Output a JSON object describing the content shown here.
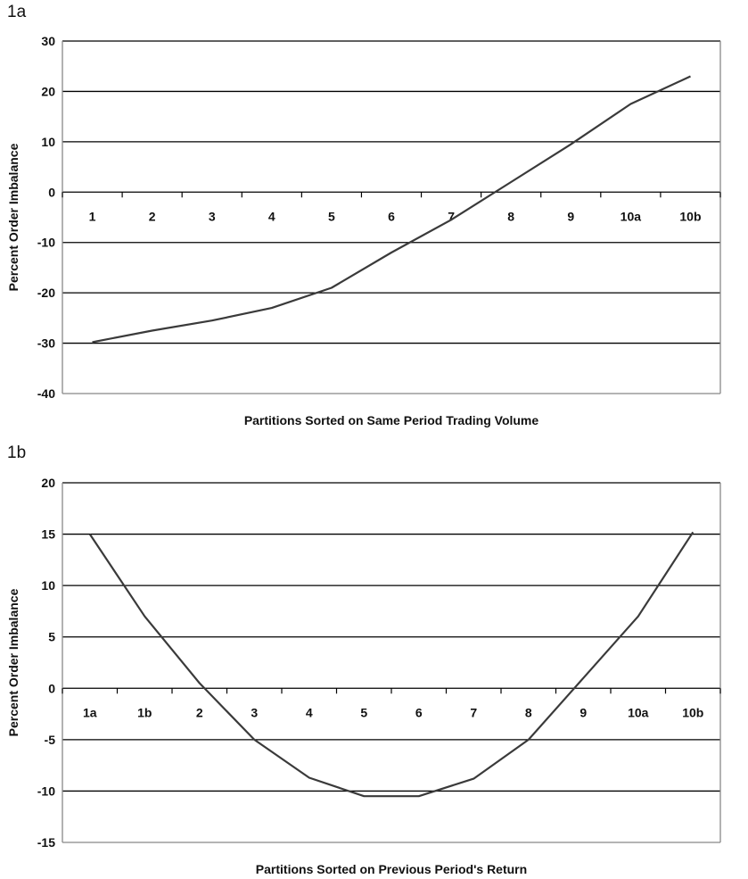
{
  "chart_data": [
    {
      "panel_label": "1a",
      "type": "line",
      "categories": [
        "1",
        "2",
        "3",
        "4",
        "5",
        "6",
        "7",
        "8",
        "9",
        "10a",
        "10b"
      ],
      "values": [
        -29.8,
        -27.5,
        -25.5,
        -23,
        -19,
        -12,
        -5.5,
        2,
        9.5,
        17.5,
        23
      ],
      "xlabel": "Partitions Sorted on Same Period Trading Volume",
      "ylabel": "Percent Order Imbalance",
      "ylim": [
        -40,
        30
      ],
      "yticks": [
        "30",
        "20",
        "10",
        "0",
        "-10",
        "-20",
        "-30",
        "-40"
      ],
      "grid": true,
      "legend": "none"
    },
    {
      "panel_label": "1b",
      "type": "line",
      "categories": [
        "1a",
        "1b",
        "2",
        "3",
        "4",
        "5",
        "6",
        "7",
        "8",
        "9",
        "10a",
        "10b"
      ],
      "values": [
        15,
        7,
        0.5,
        -5,
        -8.7,
        -10.5,
        -10.5,
        -8.8,
        -5,
        1,
        7,
        15.2
      ],
      "xlabel": "Partitions Sorted on Previous Period's Return",
      "ylabel": "Percent Order Imbalance",
      "ylim": [
        -15,
        20
      ],
      "yticks": [
        "20",
        "15",
        "10",
        "5",
        "0",
        "-5",
        "-10",
        "-15"
      ],
      "grid": true,
      "legend": "none"
    }
  ]
}
